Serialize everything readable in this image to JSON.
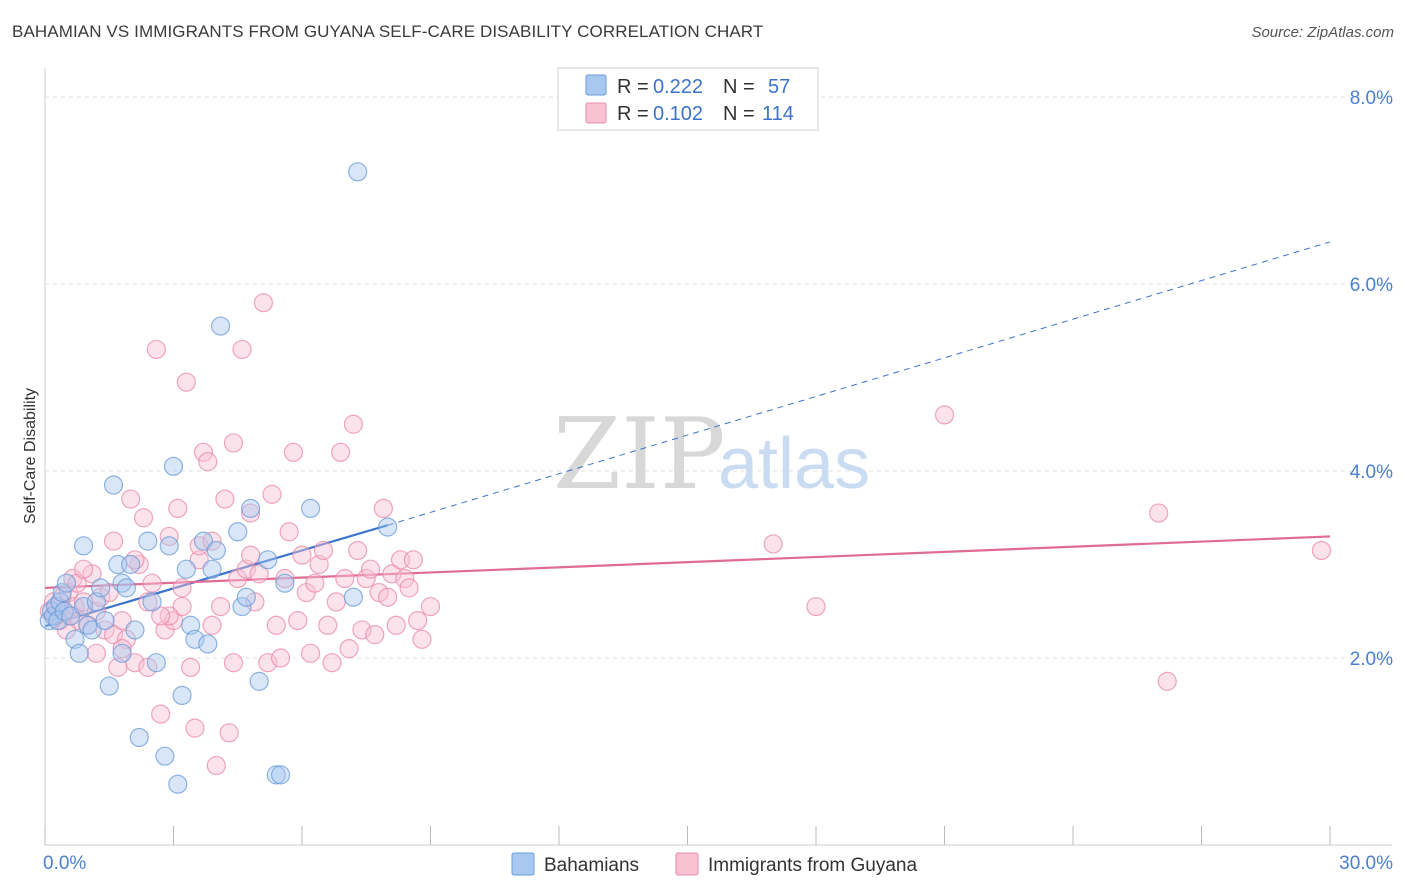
{
  "title": "BAHAMIAN VS IMMIGRANTS FROM GUYANA SELF-CARE DISABILITY CORRELATION CHART",
  "source": "Source: ZipAtlas.com",
  "watermark": {
    "part1": "ZIP",
    "part2": "atlas"
  },
  "legend_top": [
    {
      "r_label": "R =",
      "r_value": "0.222",
      "n_label": "N =",
      "n_value": "57",
      "color": "#a9c8f0",
      "stroke": "#6b9bd8"
    },
    {
      "r_label": "R =",
      "r_value": "0.102",
      "n_label": "N =",
      "n_value": "114",
      "color": "#f8c2d3",
      "stroke": "#e98aa8"
    }
  ],
  "legend_bottom": [
    {
      "label": "Bahamians",
      "color": "#a9c8f0",
      "stroke": "#6b9bd8"
    },
    {
      "label": "Immigrants from Guyana",
      "color": "#f8c2d3",
      "stroke": "#e98aa8"
    }
  ],
  "chart_data": {
    "type": "scatter",
    "xlabel": "",
    "ylabel": "Self-Care Disability",
    "xlim": [
      0,
      30
    ],
    "ylim": [
      0,
      8
    ],
    "x_tick_labels": [
      "0.0%",
      "30.0%"
    ],
    "y_ticks": [
      2,
      4,
      6,
      8
    ],
    "y_tick_labels": [
      "2.0%",
      "4.0%",
      "6.0%",
      "8.0%"
    ],
    "grid": true,
    "series": [
      {
        "name": "Bahamians",
        "color": "#6b9bd8",
        "fill": "#a9c8f0",
        "trend": {
          "x0": 0,
          "y0": 2.34,
          "x1": 8,
          "y1": 3.42,
          "dash_to_x": 30,
          "dash_to_y": 6.45,
          "color": "#3a74cc"
        },
        "points": [
          [
            0.1,
            2.4
          ],
          [
            0.15,
            2.5
          ],
          [
            0.2,
            2.45
          ],
          [
            0.25,
            2.55
          ],
          [
            0.3,
            2.4
          ],
          [
            0.35,
            2.6
          ],
          [
            0.4,
            2.7
          ],
          [
            0.45,
            2.5
          ],
          [
            0.5,
            2.8
          ],
          [
            0.6,
            2.45
          ],
          [
            0.7,
            2.2
          ],
          [
            0.8,
            2.05
          ],
          [
            0.9,
            2.55
          ],
          [
            0.9,
            3.2
          ],
          [
            1.0,
            2.35
          ],
          [
            1.1,
            2.3
          ],
          [
            1.2,
            2.6
          ],
          [
            1.3,
            2.75
          ],
          [
            1.4,
            2.4
          ],
          [
            1.5,
            1.7
          ],
          [
            1.6,
            3.85
          ],
          [
            1.7,
            3.0
          ],
          [
            1.8,
            2.8
          ],
          [
            1.8,
            2.05
          ],
          [
            1.9,
            2.75
          ],
          [
            2.0,
            3.0
          ],
          [
            2.1,
            2.3
          ],
          [
            2.2,
            1.15
          ],
          [
            2.4,
            3.25
          ],
          [
            2.5,
            2.6
          ],
          [
            2.6,
            1.95
          ],
          [
            2.8,
            0.95
          ],
          [
            2.9,
            3.2
          ],
          [
            3.0,
            4.05
          ],
          [
            3.1,
            0.65
          ],
          [
            3.2,
            1.6
          ],
          [
            3.3,
            2.95
          ],
          [
            3.4,
            2.35
          ],
          [
            3.5,
            2.2
          ],
          [
            3.7,
            3.25
          ],
          [
            3.8,
            2.15
          ],
          [
            3.9,
            2.95
          ],
          [
            4.0,
            3.15
          ],
          [
            4.1,
            5.55
          ],
          [
            4.5,
            3.35
          ],
          [
            4.6,
            2.55
          ],
          [
            4.7,
            2.65
          ],
          [
            4.8,
            3.6
          ],
          [
            5.0,
            1.75
          ],
          [
            5.2,
            3.05
          ],
          [
            5.4,
            0.75
          ],
          [
            5.5,
            0.75
          ],
          [
            5.6,
            2.8
          ],
          [
            6.2,
            3.6
          ],
          [
            7.2,
            2.65
          ],
          [
            7.3,
            7.2
          ],
          [
            8.0,
            3.4
          ]
        ]
      },
      {
        "name": "Immigrants from Guyana",
        "color": "#e98aa8",
        "fill": "#f8c2d3",
        "trend": {
          "x0": 0,
          "y0": 2.75,
          "x1": 30,
          "y1": 3.3,
          "color": "#e06b95"
        },
        "points": [
          [
            0.1,
            2.5
          ],
          [
            0.2,
            2.6
          ],
          [
            0.25,
            2.45
          ],
          [
            0.3,
            2.55
          ],
          [
            0.35,
            2.4
          ],
          [
            0.4,
            2.65
          ],
          [
            0.45,
            2.5
          ],
          [
            0.5,
            2.3
          ],
          [
            0.55,
            2.7
          ],
          [
            0.6,
            2.45
          ],
          [
            0.65,
            2.85
          ],
          [
            0.7,
            2.55
          ],
          [
            0.75,
            2.8
          ],
          [
            0.8,
            2.4
          ],
          [
            0.9,
            2.6
          ],
          [
            1.0,
            2.35
          ],
          [
            1.1,
            2.9
          ],
          [
            1.2,
            2.5
          ],
          [
            1.3,
            2.65
          ],
          [
            1.4,
            2.3
          ],
          [
            1.5,
            2.7
          ],
          [
            1.6,
            2.25
          ],
          [
            1.7,
            1.9
          ],
          [
            1.8,
            2.4
          ],
          [
            1.9,
            2.2
          ],
          [
            2.0,
            3.7
          ],
          [
            2.1,
            1.95
          ],
          [
            2.2,
            3.0
          ],
          [
            2.3,
            3.5
          ],
          [
            2.4,
            1.9
          ],
          [
            2.5,
            2.8
          ],
          [
            2.6,
            5.3
          ],
          [
            2.7,
            1.4
          ],
          [
            2.8,
            2.3
          ],
          [
            2.9,
            3.3
          ],
          [
            3.0,
            2.4
          ],
          [
            3.1,
            3.6
          ],
          [
            3.2,
            2.55
          ],
          [
            3.3,
            4.95
          ],
          [
            3.4,
            1.9
          ],
          [
            3.5,
            1.25
          ],
          [
            3.6,
            3.05
          ],
          [
            3.7,
            4.2
          ],
          [
            3.8,
            4.1
          ],
          [
            3.9,
            2.35
          ],
          [
            4.0,
            0.85
          ],
          [
            4.1,
            2.55
          ],
          [
            4.2,
            3.7
          ],
          [
            4.3,
            1.2
          ],
          [
            4.4,
            1.95
          ],
          [
            4.5,
            2.85
          ],
          [
            4.6,
            5.3
          ],
          [
            4.7,
            2.95
          ],
          [
            4.8,
            3.55
          ],
          [
            4.9,
            2.6
          ],
          [
            5.0,
            2.9
          ],
          [
            5.1,
            5.8
          ],
          [
            5.2,
            1.95
          ],
          [
            5.3,
            3.75
          ],
          [
            5.4,
            2.35
          ],
          [
            5.5,
            2.0
          ],
          [
            5.6,
            2.85
          ],
          [
            5.7,
            3.35
          ],
          [
            5.8,
            4.2
          ],
          [
            5.9,
            2.4
          ],
          [
            6.0,
            3.1
          ],
          [
            6.1,
            2.7
          ],
          [
            6.2,
            2.05
          ],
          [
            6.3,
            2.8
          ],
          [
            6.4,
            3.0
          ],
          [
            6.5,
            3.15
          ],
          [
            6.6,
            2.35
          ],
          [
            6.7,
            1.95
          ],
          [
            6.8,
            2.6
          ],
          [
            6.9,
            4.2
          ],
          [
            7.0,
            2.85
          ],
          [
            7.1,
            2.1
          ],
          [
            7.2,
            4.5
          ],
          [
            7.3,
            3.15
          ],
          [
            7.4,
            2.3
          ],
          [
            7.5,
            2.85
          ],
          [
            7.6,
            2.95
          ],
          [
            7.7,
            2.25
          ],
          [
            7.8,
            2.7
          ],
          [
            7.9,
            3.6
          ],
          [
            8.0,
            2.65
          ],
          [
            8.1,
            2.9
          ],
          [
            8.2,
            2.35
          ],
          [
            8.3,
            3.05
          ],
          [
            8.4,
            2.85
          ],
          [
            8.5,
            2.75
          ],
          [
            8.6,
            3.05
          ],
          [
            8.7,
            2.4
          ],
          [
            8.8,
            2.2
          ],
          [
            9.0,
            2.55
          ],
          [
            2.9,
            2.45
          ],
          [
            3.6,
            3.2
          ],
          [
            4.4,
            4.3
          ],
          [
            1.2,
            2.05
          ],
          [
            2.4,
            2.6
          ],
          [
            1.6,
            3.25
          ],
          [
            0.9,
            2.95
          ],
          [
            3.2,
            2.75
          ],
          [
            2.1,
            3.05
          ],
          [
            4.8,
            3.1
          ],
          [
            1.8,
            2.1
          ],
          [
            2.7,
            2.45
          ],
          [
            3.9,
            3.25
          ],
          [
            17.0,
            3.22
          ],
          [
            18.0,
            2.55
          ],
          [
            21.0,
            4.6
          ],
          [
            26.0,
            3.55
          ],
          [
            26.2,
            1.75
          ],
          [
            29.8,
            3.15
          ]
        ]
      }
    ]
  }
}
